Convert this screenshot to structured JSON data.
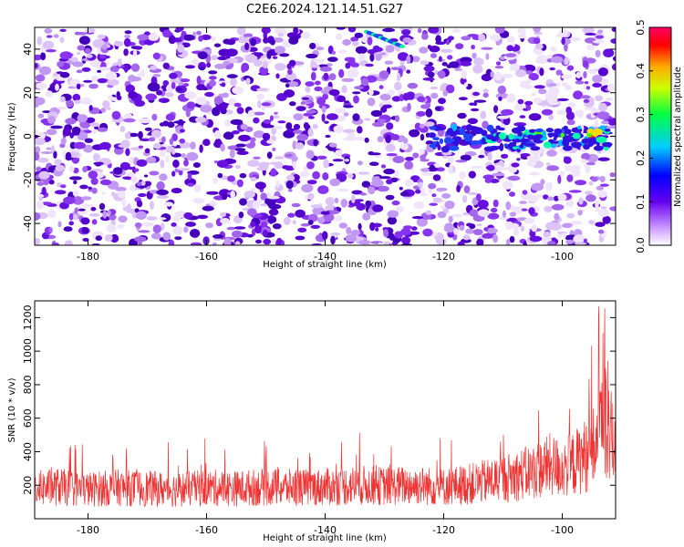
{
  "title": "C2E6.2024.121.14.51.G27",
  "chart_data": [
    {
      "type": "heatmap",
      "xlabel": "Height of straight line (km)",
      "ylabel": "Frequency (Hz)",
      "xlim": [
        -189,
        -91
      ],
      "ylim": [
        -50,
        50
      ],
      "x_ticks": [
        -180,
        -160,
        -140,
        -120,
        -100
      ],
      "y_ticks": [
        -40,
        -20,
        0,
        20,
        40
      ],
      "colorbar": {
        "label": "Normalized spectral amplitude",
        "range": [
          0,
          0.5
        ],
        "ticks": [
          0.0,
          0.1,
          0.2,
          0.3,
          0.4,
          0.5
        ]
      },
      "colors": {
        "low": "#e8d8f8",
        "mid_low": "#9933ff",
        "mid": "#5500dd",
        "high": "#ff0000"
      },
      "features": [
        {
          "x_range": [
            -122,
            -91
          ],
          "y_center": -2,
          "description_value": "strong band near 0 Hz",
          "peak": 0.45
        },
        {
          "x_range": [
            -133,
            -127
          ],
          "y_center": 45,
          "peak": 0.25
        }
      ]
    },
    {
      "type": "line",
      "xlabel": "Height of straight line (km)",
      "ylabel": "SNR (10 * v/v)",
      "xlim": [
        -189,
        -91
      ],
      "ylim": [
        0,
        1300
      ],
      "x_ticks": [
        -180,
        -160,
        -140,
        -120,
        -100
      ],
      "y_ticks": [
        200,
        400,
        600,
        800,
        1000,
        1200
      ],
      "series_color": "#ee3333",
      "series": [
        {
          "x": [
            -189,
            -185,
            -180,
            -175,
            -170,
            -165,
            -160,
            -155,
            -150,
            -145,
            -140,
            -135,
            -130,
            -125,
            -120,
            -115,
            -110,
            -105,
            -102,
            -100,
            -98,
            -96,
            -94,
            -93,
            -92,
            -91
          ],
          "y": [
            180,
            190,
            175,
            185,
            180,
            175,
            185,
            180,
            190,
            185,
            190,
            200,
            195,
            200,
            190,
            210,
            240,
            280,
            320,
            300,
            330,
            380,
            450,
            600,
            500,
            420
          ]
        }
      ]
    }
  ]
}
